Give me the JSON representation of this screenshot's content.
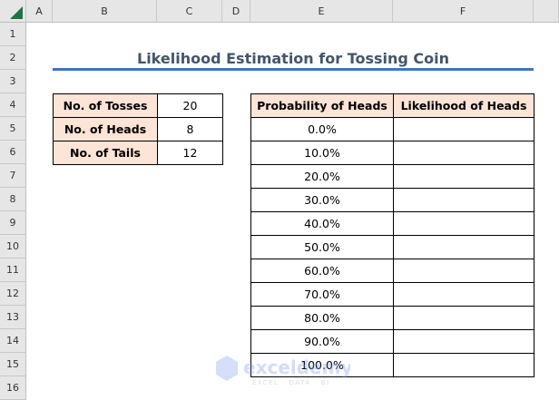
{
  "columns": [
    "A",
    "B",
    "C",
    "D",
    "E",
    "F"
  ],
  "rows": [
    "1",
    "2",
    "3",
    "4",
    "5",
    "6",
    "7",
    "8",
    "9",
    "10",
    "11",
    "12",
    "13",
    "14",
    "15",
    "16"
  ],
  "title": "Likelihood Estimation for Tossing Coin",
  "summary": [
    {
      "label": "No. of Tosses",
      "value": "20"
    },
    {
      "label": "No. of Heads",
      "value": "8"
    },
    {
      "label": "No. of Tails",
      "value": "12"
    }
  ],
  "table": {
    "headers": [
      "Probability of Heads",
      "Likelihood of Heads"
    ],
    "rows": [
      "0.0%",
      "10.0%",
      "20.0%",
      "30.0%",
      "40.0%",
      "50.0%",
      "60.0%",
      "70.0%",
      "80.0%",
      "90.0%",
      "100.0%"
    ]
  },
  "watermark": "exceldemy EXCEL · DATA · BI",
  "colors": {
    "label_fill": "#fce4d6",
    "title": "#44546a",
    "underline": "#4472c4"
  }
}
